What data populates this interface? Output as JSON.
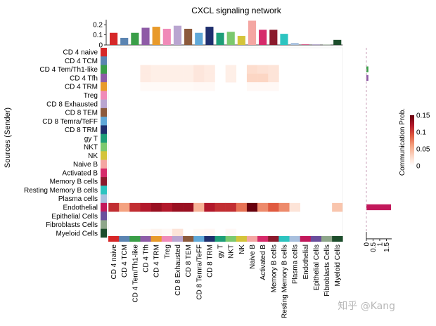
{
  "chart_data": {
    "type": "heatmap",
    "title": "CXCL signaling network",
    "ylabel": "Sources (Sender)",
    "colorbar": {
      "title": "Communication Prob.",
      "range": [
        0,
        0.15
      ],
      "ticks": [
        0,
        0.05,
        0.1,
        0.15
      ],
      "tick_labels": [
        "0",
        "0.05",
        "0.1",
        "0.15"
      ],
      "colors": [
        "#ffffff",
        "#fcd6c4",
        "#f4a280",
        "#e05a40",
        "#b2182b",
        "#67000d"
      ]
    },
    "rows": [
      "CD 4 naive",
      "CD 4 TCM",
      "CD 4 Tem/Th1-like",
      "CD 4 Tfh",
      "CD 4 TRM",
      "Treg",
      "CD 8 Exhausted",
      "CD 8 TEM",
      "CD 8 Temra/TeFF",
      "CD 8 TRM",
      "gy T",
      "NKT",
      "NK",
      "Naive B",
      "Activated B",
      "Memory B cells",
      "Resting Memory B cells",
      "Plasma cells",
      "Endothelial",
      "Epithelial Cells",
      "Fibroblasts Cells",
      "Myeloid Cells"
    ],
    "columns": [
      "CD 4 naive",
      "CD 4 TCM",
      "CD 4 Tem/Th1-like",
      "CD 4 Tfh",
      "CD 4 TRM",
      "Treg",
      "CD 8 Exhausted",
      "CD 8 TEM",
      "CD 8 Temra/TeFF",
      "CD 8 TRM",
      "gy T",
      "NKT",
      "NK",
      "Naive B",
      "Activated B",
      "Memory B cells",
      "Resting Memory B cells",
      "Plasma cells",
      "Endothelial",
      "Epithelial Cells",
      "Fibroblasts Cells",
      "Myeloid Cells"
    ],
    "group_colors": [
      "#d62728",
      "#5b84b1",
      "#3a9e48",
      "#8e5ba6",
      "#e89a2a",
      "#f08ab8",
      "#b9a5d0",
      "#8c5a3c",
      "#5fa8d8",
      "#1f2f6e",
      "#1e9e78",
      "#7cc96e",
      "#d4c43a",
      "#f4a6a2",
      "#d62a6a",
      "#8b1a2c",
      "#2cc4c0",
      "#a8c0de",
      "#c2185b",
      "#6a4e9c",
      "#8ea68a",
      "#1d4d2c"
    ],
    "top_bar": {
      "values": [
        0.12,
        0.07,
        0.12,
        0.17,
        0.18,
        0.16,
        0.19,
        0.16,
        0.12,
        0.18,
        0.12,
        0.13,
        0.09,
        0.24,
        0.15,
        0.15,
        0.11,
        0.02,
        0.005,
        0.003,
        0.003,
        0.05
      ],
      "ylim": [
        0,
        0.25
      ],
      "ticks": [
        0,
        0.1,
        0.2
      ],
      "tick_labels": [
        "0",
        "0.1",
        "0.2"
      ]
    },
    "right_bar": {
      "values": [
        0,
        0,
        0.15,
        0.15,
        0,
        0,
        0,
        0,
        0,
        0,
        0,
        0,
        0,
        0,
        0,
        0,
        0,
        0,
        1.85,
        0,
        0,
        0
      ],
      "xlim": [
        0,
        1.9
      ],
      "ticks": [
        0,
        0.5,
        1,
        1.5
      ],
      "tick_labels": [
        "0",
        "0.5",
        "1",
        "1.5"
      ]
    },
    "matrix": [
      [
        0,
        0,
        0,
        0,
        0,
        0,
        0,
        0,
        0,
        0,
        0,
        0,
        0,
        0,
        0,
        0,
        0,
        0,
        0,
        0,
        0,
        0
      ],
      [
        0,
        0,
        0,
        0,
        0,
        0,
        0,
        0,
        0,
        0,
        0,
        0,
        0,
        0,
        0,
        0,
        0,
        0,
        0,
        0,
        0,
        0
      ],
      [
        0,
        0,
        0,
        0.015,
        0.012,
        0.012,
        0.012,
        0.012,
        0.018,
        0.015,
        0,
        0.012,
        0,
        0.025,
        0.022,
        0.02,
        0,
        0,
        0,
        0,
        0,
        0
      ],
      [
        0,
        0,
        0,
        0.015,
        0.012,
        0.012,
        0.012,
        0.012,
        0.018,
        0.015,
        0,
        0.012,
        0,
        0.03,
        0.03,
        0.02,
        0,
        0,
        0,
        0,
        0,
        0
      ],
      [
        0,
        0,
        0,
        0.004,
        0.004,
        0.004,
        0.004,
        0.004,
        0.005,
        0.005,
        0,
        0,
        0,
        0.005,
        0.005,
        0.005,
        0,
        0,
        0,
        0,
        0,
        0
      ],
      [
        0,
        0,
        0,
        0,
        0,
        0,
        0,
        0,
        0,
        0,
        0,
        0,
        0,
        0,
        0,
        0,
        0,
        0,
        0,
        0,
        0,
        0
      ],
      [
        0,
        0,
        0,
        0,
        0,
        0,
        0,
        0,
        0,
        0,
        0,
        0,
        0,
        0,
        0,
        0,
        0,
        0,
        0,
        0,
        0,
        0
      ],
      [
        0,
        0,
        0,
        0,
        0,
        0,
        0,
        0,
        0,
        0,
        0,
        0,
        0,
        0,
        0,
        0,
        0,
        0,
        0,
        0,
        0,
        0
      ],
      [
        0,
        0,
        0,
        0,
        0,
        0,
        0,
        0,
        0,
        0,
        0,
        0,
        0,
        0,
        0,
        0,
        0,
        0,
        0,
        0,
        0,
        0
      ],
      [
        0,
        0,
        0,
        0,
        0,
        0,
        0,
        0,
        0,
        0,
        0,
        0,
        0,
        0,
        0,
        0,
        0,
        0,
        0,
        0,
        0,
        0
      ],
      [
        0,
        0,
        0,
        0,
        0,
        0,
        0,
        0,
        0,
        0,
        0,
        0,
        0,
        0,
        0,
        0,
        0,
        0,
        0,
        0,
        0,
        0
      ],
      [
        0,
        0,
        0,
        0,
        0,
        0,
        0,
        0,
        0,
        0,
        0,
        0,
        0,
        0,
        0,
        0,
        0,
        0,
        0,
        0,
        0,
        0
      ],
      [
        0,
        0,
        0,
        0,
        0,
        0,
        0,
        0,
        0,
        0,
        0,
        0,
        0,
        0,
        0,
        0,
        0,
        0,
        0,
        0,
        0,
        0
      ],
      [
        0,
        0,
        0,
        0,
        0,
        0,
        0,
        0,
        0,
        0,
        0,
        0,
        0,
        0,
        0,
        0,
        0,
        0,
        0,
        0,
        0,
        0
      ],
      [
        0,
        0,
        0,
        0,
        0,
        0,
        0,
        0,
        0,
        0,
        0,
        0,
        0,
        0,
        0,
        0,
        0,
        0,
        0,
        0,
        0,
        0
      ],
      [
        0,
        0,
        0,
        0,
        0,
        0,
        0,
        0,
        0,
        0,
        0,
        0,
        0,
        0,
        0,
        0,
        0,
        0,
        0,
        0,
        0,
        0
      ],
      [
        0,
        0,
        0,
        0,
        0,
        0,
        0,
        0,
        0,
        0,
        0,
        0,
        0,
        0,
        0,
        0,
        0,
        0,
        0,
        0,
        0,
        0
      ],
      [
        0,
        0,
        0,
        0,
        0,
        0,
        0,
        0,
        0,
        0,
        0,
        0,
        0,
        0,
        0,
        0,
        0,
        0,
        0,
        0,
        0,
        0
      ],
      [
        0.11,
        0.06,
        0.11,
        0.12,
        0.13,
        0.12,
        0.13,
        0.13,
        0.05,
        0.12,
        0.11,
        0.11,
        0.08,
        0.15,
        0.07,
        0.09,
        0.07,
        0.02,
        0,
        0,
        0,
        0.04
      ],
      [
        0,
        0,
        0,
        0,
        0,
        0,
        0,
        0,
        0,
        0,
        0,
        0,
        0,
        0,
        0,
        0,
        0,
        0,
        0,
        0,
        0,
        0
      ],
      [
        0,
        0,
        0,
        0,
        0,
        0,
        0,
        0,
        0,
        0,
        0,
        0,
        0,
        0,
        0,
        0,
        0,
        0,
        0,
        0,
        0,
        0
      ],
      [
        0,
        0,
        0,
        0.004,
        0.008,
        0.005,
        0.02,
        0,
        0.004,
        0.005,
        0,
        0.005,
        0,
        0,
        0,
        0,
        0,
        0,
        0,
        0,
        0,
        0
      ]
    ]
  },
  "watermark": "知乎 @Kang"
}
